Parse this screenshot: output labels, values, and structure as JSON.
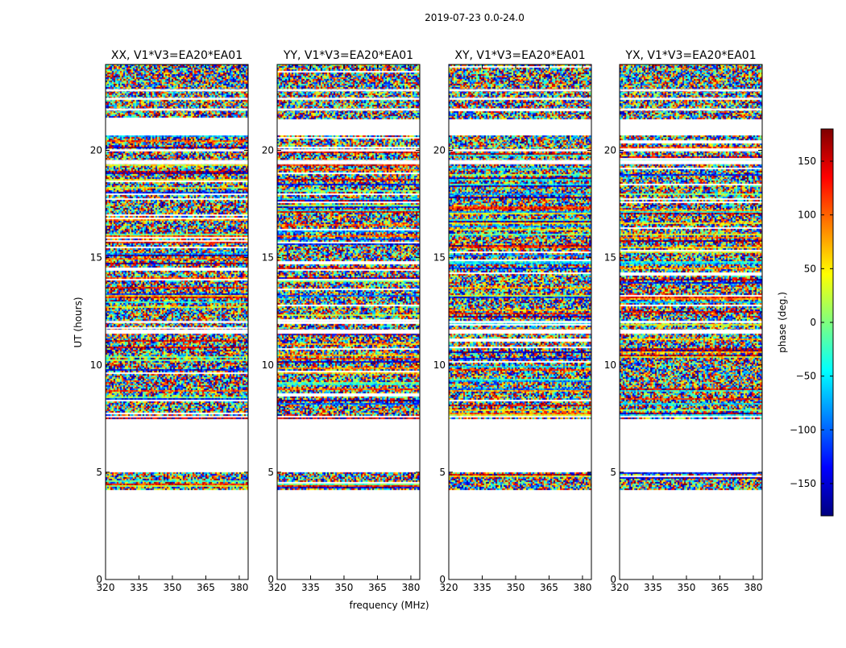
{
  "suptitle": "2019-07-23 0.0-24.0",
  "xlabel": "frequency (MHz)",
  "ylabel": "UT (hours)",
  "colorbar": {
    "label": "phase (deg.)",
    "ticks": [
      150,
      100,
      50,
      0,
      -50,
      -100,
      -150
    ],
    "tick_labels": [
      "150",
      "100",
      "50",
      "0",
      "−50",
      "−100",
      "−150"
    ],
    "range": [
      -180,
      180
    ],
    "colormap": [
      "#00007f",
      "#0000ff",
      "#007fff",
      "#00ffff",
      "#7fff7f",
      "#ffff00",
      "#ff7f00",
      "#ff0000",
      "#7f0000"
    ]
  },
  "chart_data": {
    "type": "heatmap",
    "xlim": [
      320,
      384
    ],
    "ylim": [
      0,
      24
    ],
    "xticks": [
      320,
      335,
      350,
      365,
      380
    ],
    "yticks": [
      0,
      5,
      10,
      15,
      20
    ],
    "xtick_labels": [
      "320",
      "335",
      "350",
      "365",
      "380"
    ],
    "ytick_labels": [
      "0",
      "5",
      "10",
      "15",
      "20"
    ],
    "valid_ut_ranges": [
      [
        4.2,
        5.0
      ],
      [
        7.5,
        20.7
      ],
      [
        21.5,
        24.0
      ]
    ],
    "panels": [
      {
        "title": "XX, V1*V3=EA20*EA01",
        "noise_ut_ranges": [
          [
            21.5,
            24.0
          ]
        ],
        "bias": 20
      },
      {
        "title": "YY, V1*V3=EA20*EA01",
        "noise_ut_ranges": [
          [
            21.5,
            24.0
          ]
        ],
        "bias": 140
      },
      {
        "title": "XY, V1*V3=EA20*EA01",
        "noise_ut_ranges": [
          [
            21.5,
            24.0
          ]
        ],
        "bias": 0
      },
      {
        "title": "YX, V1*V3=EA20*EA01",
        "noise_ut_ranges": [
          [
            21.5,
            24.0
          ]
        ],
        "bias": 0
      }
    ]
  }
}
